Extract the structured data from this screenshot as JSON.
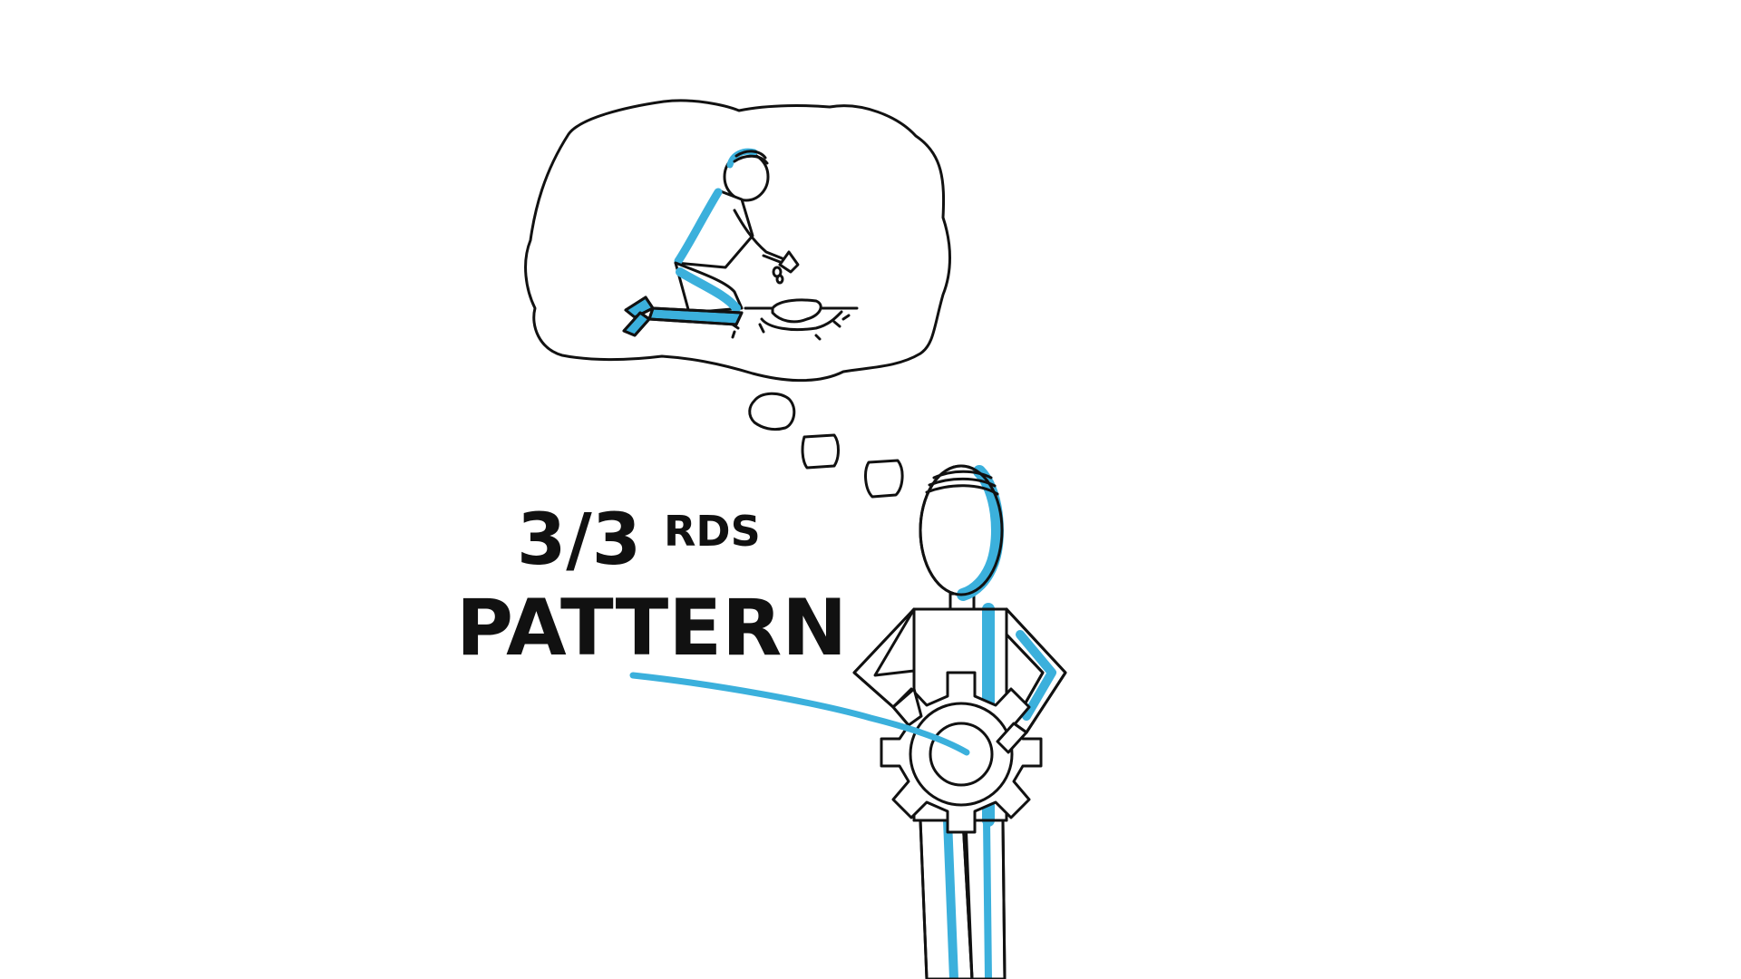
{
  "caption": {
    "fraction": "3/3",
    "superscript": "RDS",
    "word": "PATTERN"
  },
  "colors": {
    "ink": "#111111",
    "accent": "#3bb0dc",
    "background": "#ffffff"
  }
}
